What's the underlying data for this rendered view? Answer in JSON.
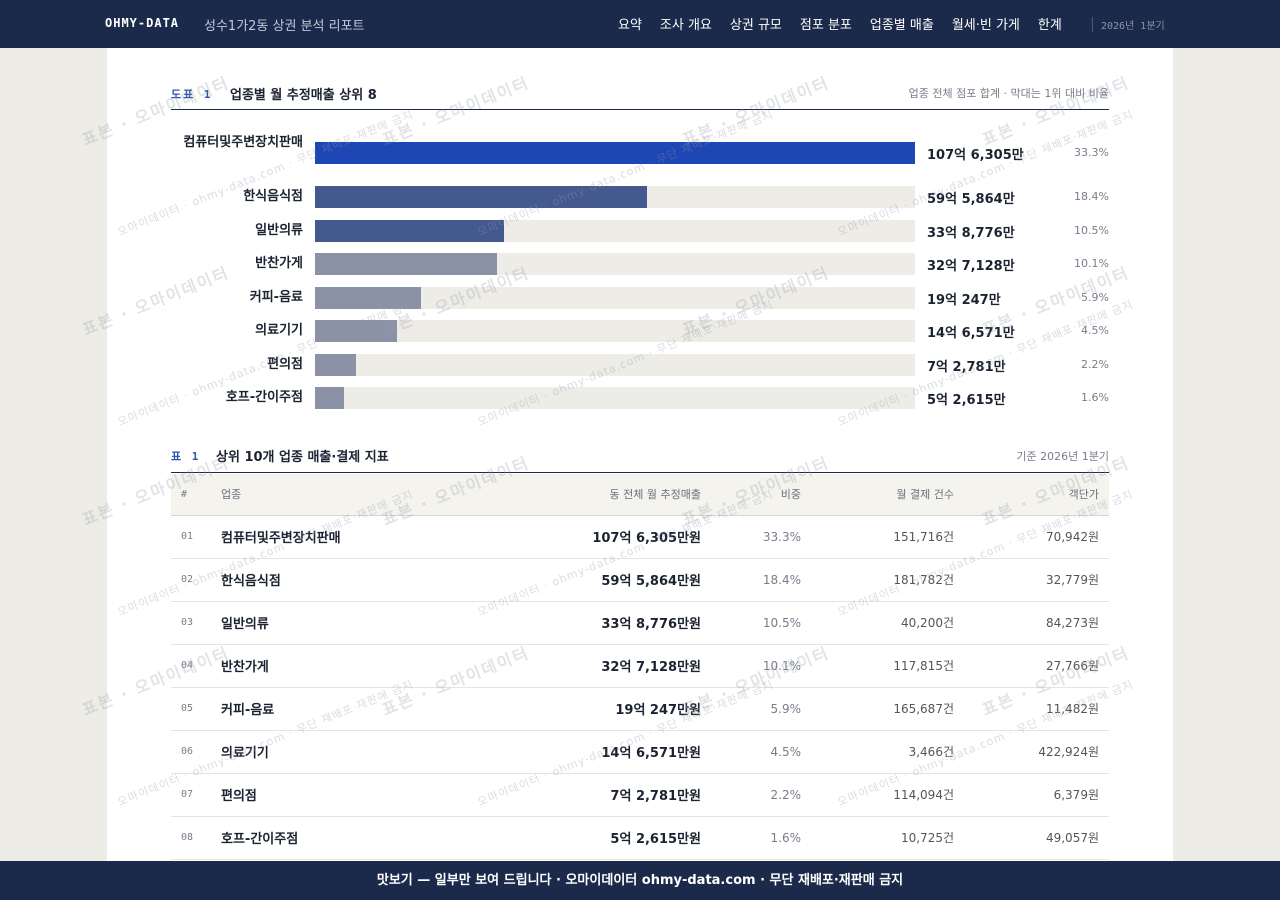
{
  "header": {
    "brand": "OHMY-DATA",
    "subtitle": "성수1가2동 상권 분석 리포트",
    "nav": [
      "요약",
      "조사 개요",
      "상권 규모",
      "점포 분포",
      "업종별 매출",
      "월세·빈 가게",
      "한계"
    ],
    "period": "2026년 1분기"
  },
  "figure": {
    "tag": "도표 1",
    "title": "업종별 월 추정매출 상위 8",
    "note": "업종 전체 점포 합계 · 막대는 1위 대비 비율"
  },
  "chart_data": {
    "type": "bar",
    "orientation": "horizontal",
    "title": "업종별 월 추정매출 상위 8",
    "categories": [
      "컴퓨터및주변장치판매",
      "한식음식점",
      "일반의류",
      "반찬가게",
      "커피-음료",
      "의료기기",
      "편의점",
      "호프-간이주점"
    ],
    "values": [
      10763050000,
      5958640000,
      3387760000,
      3271280000,
      1902470000,
      1465710000,
      727810000,
      526150000
    ],
    "value_labels": [
      "107억 6,305만",
      "59억 5,864만",
      "33억 8,776만",
      "32억 7,128만",
      "19억 247만",
      "14억 6,571만",
      "7억 2,781만",
      "5억 2,615만"
    ],
    "share_labels": [
      "33.3%",
      "18.4%",
      "10.5%",
      "10.1%",
      "5.9%",
      "4.5%",
      "2.2%",
      "1.6%"
    ],
    "ratio_to_top": [
      1.0,
      0.553,
      0.315,
      0.304,
      0.177,
      0.136,
      0.068,
      0.049
    ],
    "colors": [
      "#1e46b5",
      "#445a8e",
      "#445a8e",
      "#8b92a5",
      "#8b92a5",
      "#8b92a5",
      "#8b92a5",
      "#8b92a5"
    ],
    "track_color": "#eeece6",
    "grid": false
  },
  "table": {
    "tag": "표 1",
    "title": "상위 10개 업종 매출·결제 지표",
    "note": "기준 2026년 1분기",
    "headers": [
      "#",
      "업종",
      "동 전체 월 추정매출",
      "비중",
      "월 결제 건수",
      "객단가"
    ],
    "rows": [
      [
        "01",
        "컴퓨터및주변장치판매",
        "107억 6,305만원",
        "33.3%",
        "151,716건",
        "70,942원"
      ],
      [
        "02",
        "한식음식점",
        "59억 5,864만원",
        "18.4%",
        "181,782건",
        "32,779원"
      ],
      [
        "03",
        "일반의류",
        "33억 8,776만원",
        "10.5%",
        "40,200건",
        "84,273원"
      ],
      [
        "04",
        "반찬가게",
        "32억 7,128만원",
        "10.1%",
        "117,815건",
        "27,766원"
      ],
      [
        "05",
        "커피-음료",
        "19억 247만원",
        "5.9%",
        "165,687건",
        "11,482원"
      ],
      [
        "06",
        "의료기기",
        "14억 6,571만원",
        "4.5%",
        "3,466건",
        "422,924원"
      ],
      [
        "07",
        "편의점",
        "7억 2,781만원",
        "2.2%",
        "114,094건",
        "6,379원"
      ],
      [
        "08",
        "호프-간이주점",
        "5억 2,615만원",
        "1.6%",
        "10,725건",
        "49,057원"
      ]
    ]
  },
  "watermark": {
    "primary": "표본 · 오마이데이터",
    "secondary": "오마이데이터 · ohmy-data.com · 무단 재배포·재판매 금지"
  },
  "footer": {
    "text": "맛보기 — 일부만 보여 드립니다 · 오마이데이터 ohmy-data.com · 무단 재배포·재판매 금지"
  }
}
